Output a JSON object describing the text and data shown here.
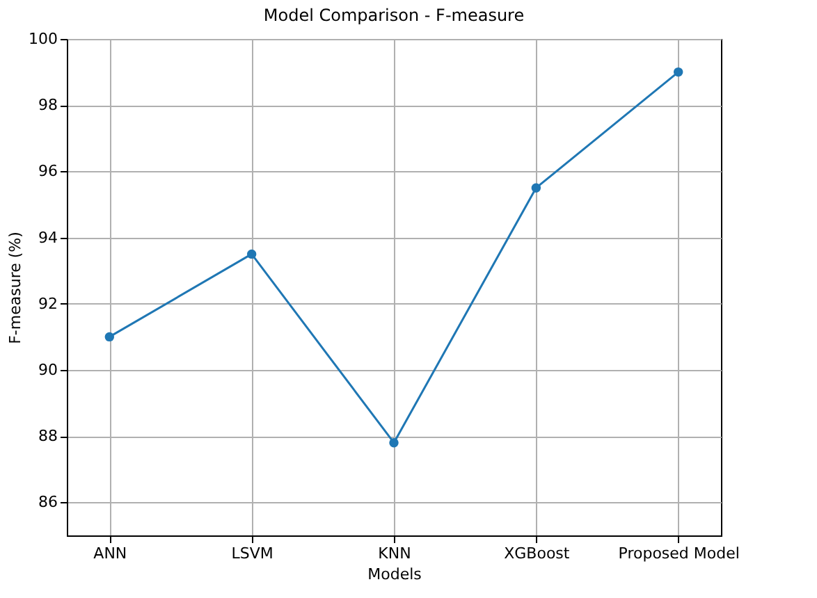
{
  "chart_data": {
    "type": "line",
    "title": "Model Comparison - F-measure",
    "xlabel": "Models",
    "ylabel": "F-measure (%)",
    "categories": [
      "ANN",
      "LSVM",
      "KNN",
      "XGBoost",
      "Proposed Model"
    ],
    "series": [
      {
        "color": "#1f77b4",
        "values": [
          91,
          93.5,
          87.8,
          95.5,
          99
        ]
      }
    ],
    "ylim": [
      85,
      100
    ],
    "yticks": [
      86,
      88,
      90,
      92,
      94,
      96,
      98,
      100
    ],
    "grid": true,
    "marker": "circle",
    "line_style": "solid"
  }
}
